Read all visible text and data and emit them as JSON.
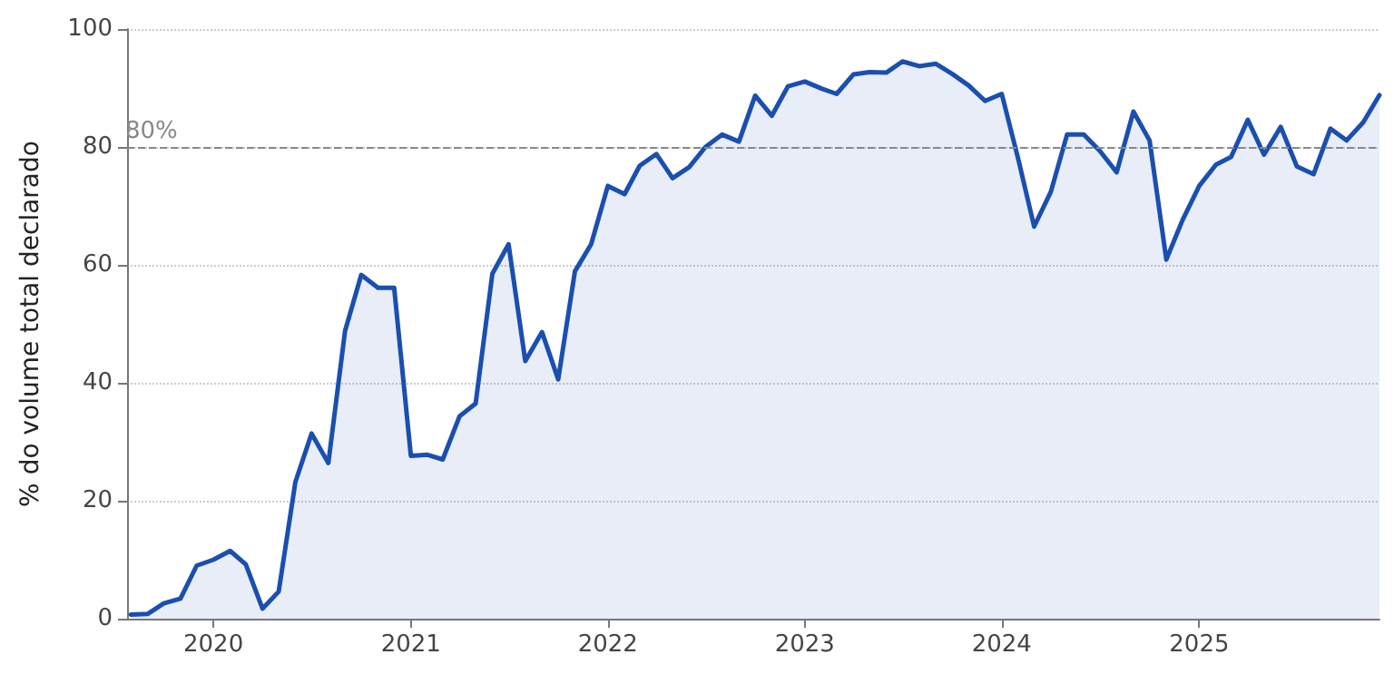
{
  "chart_data": {
    "type": "area",
    "ylabel": "% do volume total declarado",
    "x": [
      "2019-08",
      "2019-09",
      "2019-10",
      "2019-11",
      "2019-12",
      "2020-01",
      "2020-02",
      "2020-03",
      "2020-04",
      "2020-05",
      "2020-06",
      "2020-07",
      "2020-08",
      "2020-09",
      "2020-10",
      "2020-11",
      "2020-12",
      "2021-01",
      "2021-02",
      "2021-03",
      "2021-04",
      "2021-05",
      "2021-06",
      "2021-07",
      "2021-08",
      "2021-09",
      "2021-10",
      "2021-11",
      "2021-12",
      "2022-01",
      "2022-02",
      "2022-03",
      "2022-04",
      "2022-05",
      "2022-06",
      "2022-07",
      "2022-08",
      "2022-09",
      "2022-10",
      "2022-11",
      "2022-12",
      "2023-01",
      "2023-02",
      "2023-03",
      "2023-04",
      "2023-05",
      "2023-06",
      "2023-07",
      "2023-08",
      "2023-09",
      "2023-10",
      "2023-11",
      "2023-12",
      "2024-01",
      "2024-02",
      "2024-03",
      "2024-04",
      "2024-05",
      "2024-06",
      "2024-07",
      "2024-08",
      "2024-09",
      "2024-10",
      "2024-11",
      "2024-12",
      "2025-01",
      "2025-02",
      "2025-03",
      "2025-04",
      "2025-05",
      "2025-06",
      "2025-07",
      "2025-08",
      "2025-09",
      "2025-10",
      "2025-11",
      "2025-12"
    ],
    "series": [
      {
        "color": "#1a4fb0",
        "values": [
          0.7,
          0.8,
          2.6,
          3.4,
          9.0,
          10.0,
          11.5,
          9.2,
          1.7,
          4.6,
          23.2,
          31.4,
          26.4,
          48.8,
          58.3,
          56.1,
          56.1,
          27.6,
          27.8,
          27.0,
          34.3,
          36.5,
          58.5,
          63.5,
          43.7,
          48.6,
          40.6,
          58.9,
          63.5,
          73.4,
          72.0,
          76.8,
          78.8,
          74.7,
          76.6,
          80.0,
          82.1,
          80.9,
          88.7,
          85.3,
          90.3,
          91.1,
          89.9,
          89.0,
          92.3,
          92.7,
          92.6,
          94.5,
          93.7,
          94.1,
          92.4,
          90.4,
          87.8,
          89.0,
          77.8,
          66.5,
          72.4,
          82.1,
          82.1,
          79.3,
          75.7,
          86.0,
          81.1,
          60.9,
          67.6,
          73.4,
          77.0,
          78.3,
          84.6,
          78.7,
          83.4,
          76.7,
          75.4,
          83.1,
          81.1,
          84.2,
          88.8
        ]
      }
    ],
    "xlim": [
      "2019-07-25",
      "2025-12"
    ],
    "xticks": [
      {
        "value": "2020-01",
        "label": "2020"
      },
      {
        "value": "2021-01",
        "label": "2021"
      },
      {
        "value": "2022-01",
        "label": "2022"
      },
      {
        "value": "2023-01",
        "label": "2023"
      },
      {
        "value": "2024-01",
        "label": "2024"
      },
      {
        "value": "2025-01",
        "label": "2025"
      }
    ],
    "ylim": [
      0,
      100
    ],
    "yticks": [
      0,
      20,
      40,
      60,
      80,
      100
    ],
    "grid": "y",
    "ref_lines": [
      {
        "axis": "y",
        "value": 80,
        "label": "80%",
        "color": "#888888",
        "line_style": "dashed"
      }
    ]
  }
}
